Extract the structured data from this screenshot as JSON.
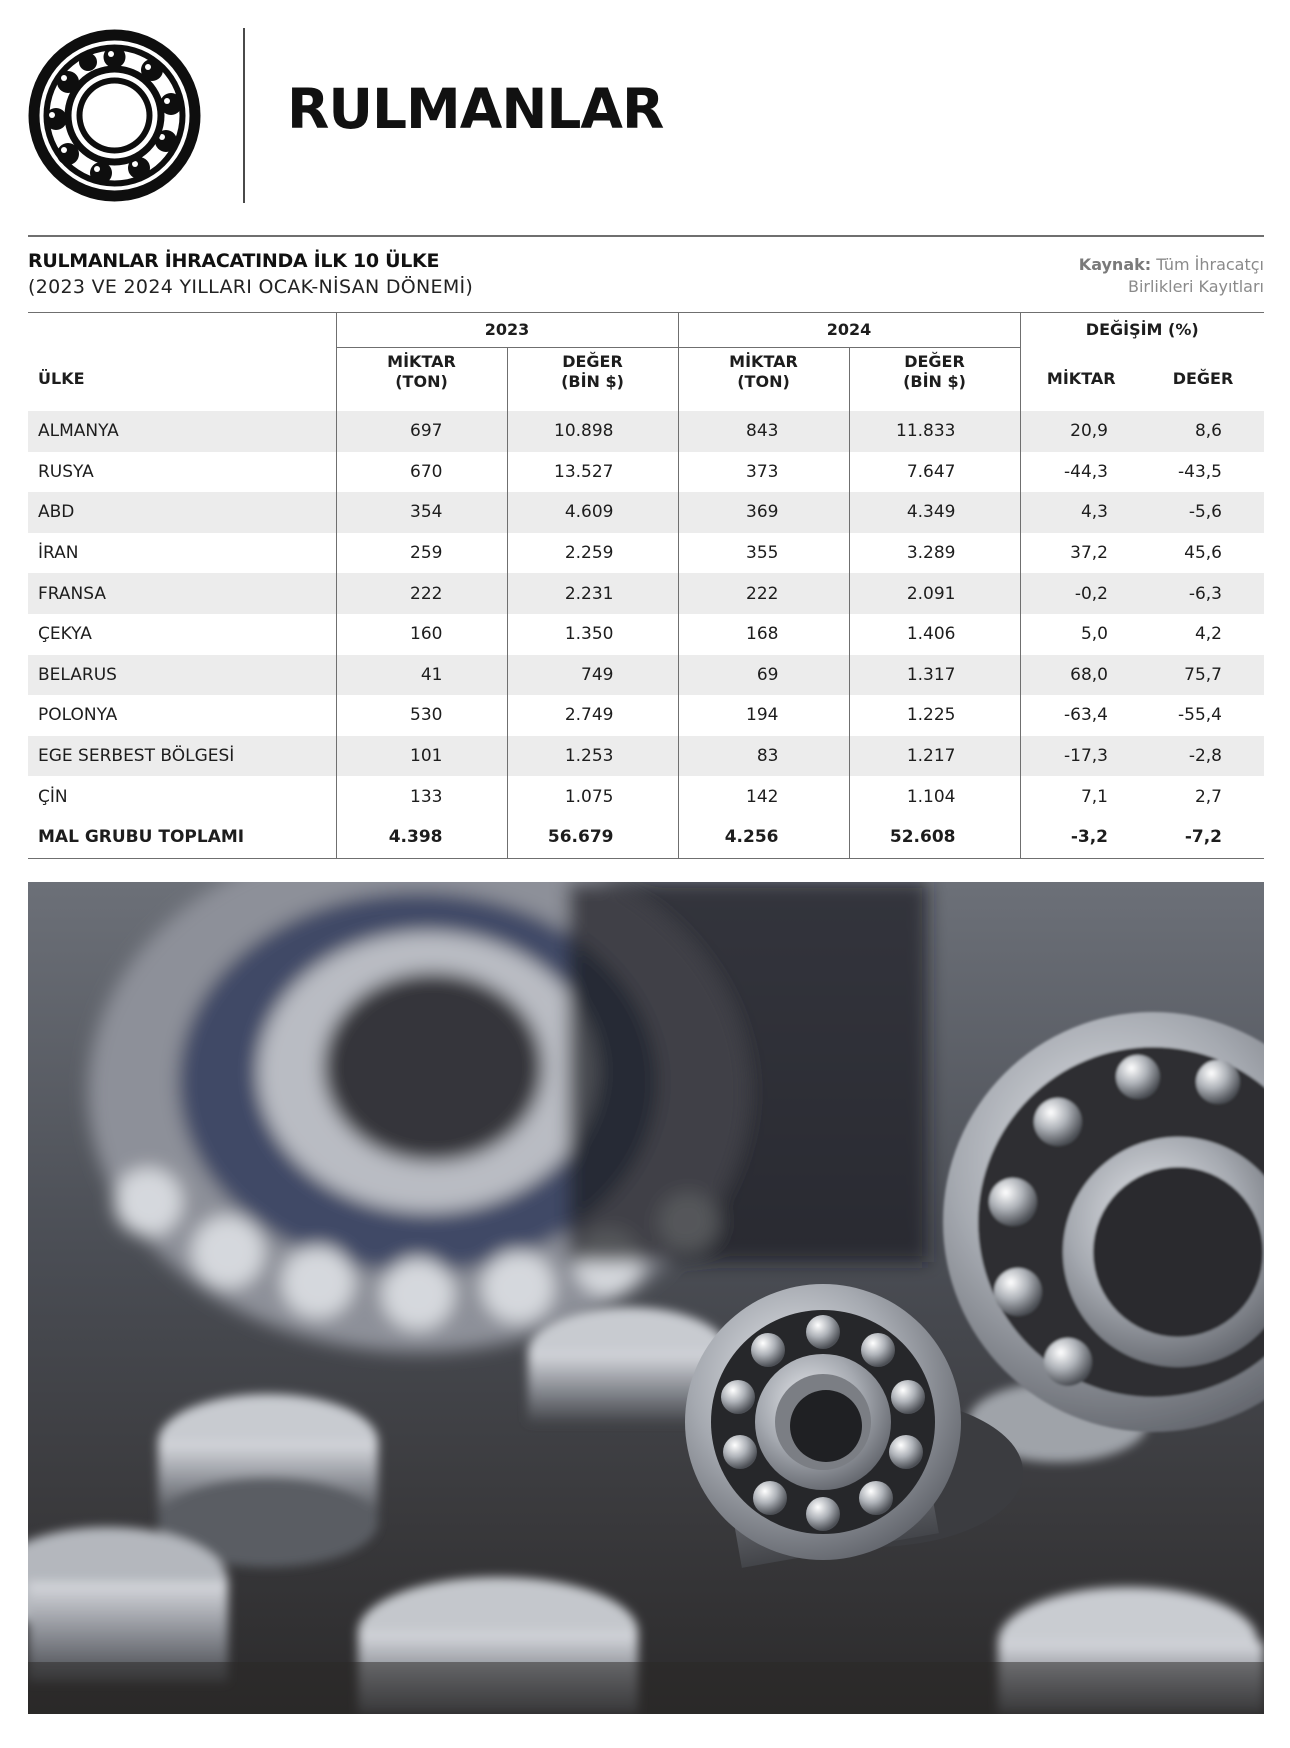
{
  "page": {
    "title": "RULMANLAR"
  },
  "table": {
    "title": "RULMANLAR İHRACATINDA İLK 10 ÜLKE",
    "subtitle": "(2023 VE 2024 YILLARI OCAK-NİSAN DÖNEMİ)",
    "source_label": "Kaynak:",
    "source_text_line1": "Tüm İhracatçı",
    "source_text_line2": "Birlikleri Kayıtları",
    "header": {
      "country": "ÜLKE",
      "year1": "2023",
      "year2": "2024",
      "change": "DEĞİŞİM (%)",
      "qty_line1": "MİKTAR",
      "qty_line2": "(TON)",
      "val_line1": "DEĞER",
      "val_line2": "(BİN $)",
      "chg_qty": "MİKTAR",
      "chg_val": "DEĞER"
    },
    "rows": [
      {
        "country": "ALMANYA",
        "q2023": "697",
        "v2023": "10.898",
        "q2024": "843",
        "v2024": "11.833",
        "dq": "20,9",
        "dv": "8,6"
      },
      {
        "country": "RUSYA",
        "q2023": "670",
        "v2023": "13.527",
        "q2024": "373",
        "v2024": "7.647",
        "dq": "-44,3",
        "dv": "-43,5"
      },
      {
        "country": "ABD",
        "q2023": "354",
        "v2023": "4.609",
        "q2024": "369",
        "v2024": "4.349",
        "dq": "4,3",
        "dv": "-5,6"
      },
      {
        "country": "İRAN",
        "q2023": "259",
        "v2023": "2.259",
        "q2024": "355",
        "v2024": "3.289",
        "dq": "37,2",
        "dv": "45,6"
      },
      {
        "country": "FRANSA",
        "q2023": "222",
        "v2023": "2.231",
        "q2024": "222",
        "v2024": "2.091",
        "dq": "-0,2",
        "dv": "-6,3"
      },
      {
        "country": "ÇEKYA",
        "q2023": "160",
        "v2023": "1.350",
        "q2024": "168",
        "v2024": "1.406",
        "dq": "5,0",
        "dv": "4,2"
      },
      {
        "country": "BELARUS",
        "q2023": "41",
        "v2023": "749",
        "q2024": "69",
        "v2024": "1.317",
        "dq": "68,0",
        "dv": "75,7"
      },
      {
        "country": "POLONYA",
        "q2023": "530",
        "v2023": "2.749",
        "q2024": "194",
        "v2024": "1.225",
        "dq": "-63,4",
        "dv": "-55,4"
      },
      {
        "country": "EGE SERBEST BÖLGESİ",
        "q2023": "101",
        "v2023": "1.253",
        "q2024": "83",
        "v2024": "1.217",
        "dq": "-17,3",
        "dv": "-2,8"
      },
      {
        "country": "ÇİN",
        "q2023": "133",
        "v2023": "1.075",
        "q2024": "142",
        "v2024": "1.104",
        "dq": "7,1",
        "dv": "2,7"
      }
    ],
    "total": {
      "country": "MAL GRUBU TOPLAMI",
      "q2023": "4.398",
      "v2023": "56.679",
      "q2024": "4.256",
      "v2024": "52.608",
      "dq": "-3,2",
      "dv": "-7,2"
    }
  },
  "colors": {
    "row_shade": "#ececec",
    "rule": "#6f6f6f",
    "text": "#1d1d1d"
  },
  "icons": {
    "header_icon": "ball-bearing-icon"
  }
}
